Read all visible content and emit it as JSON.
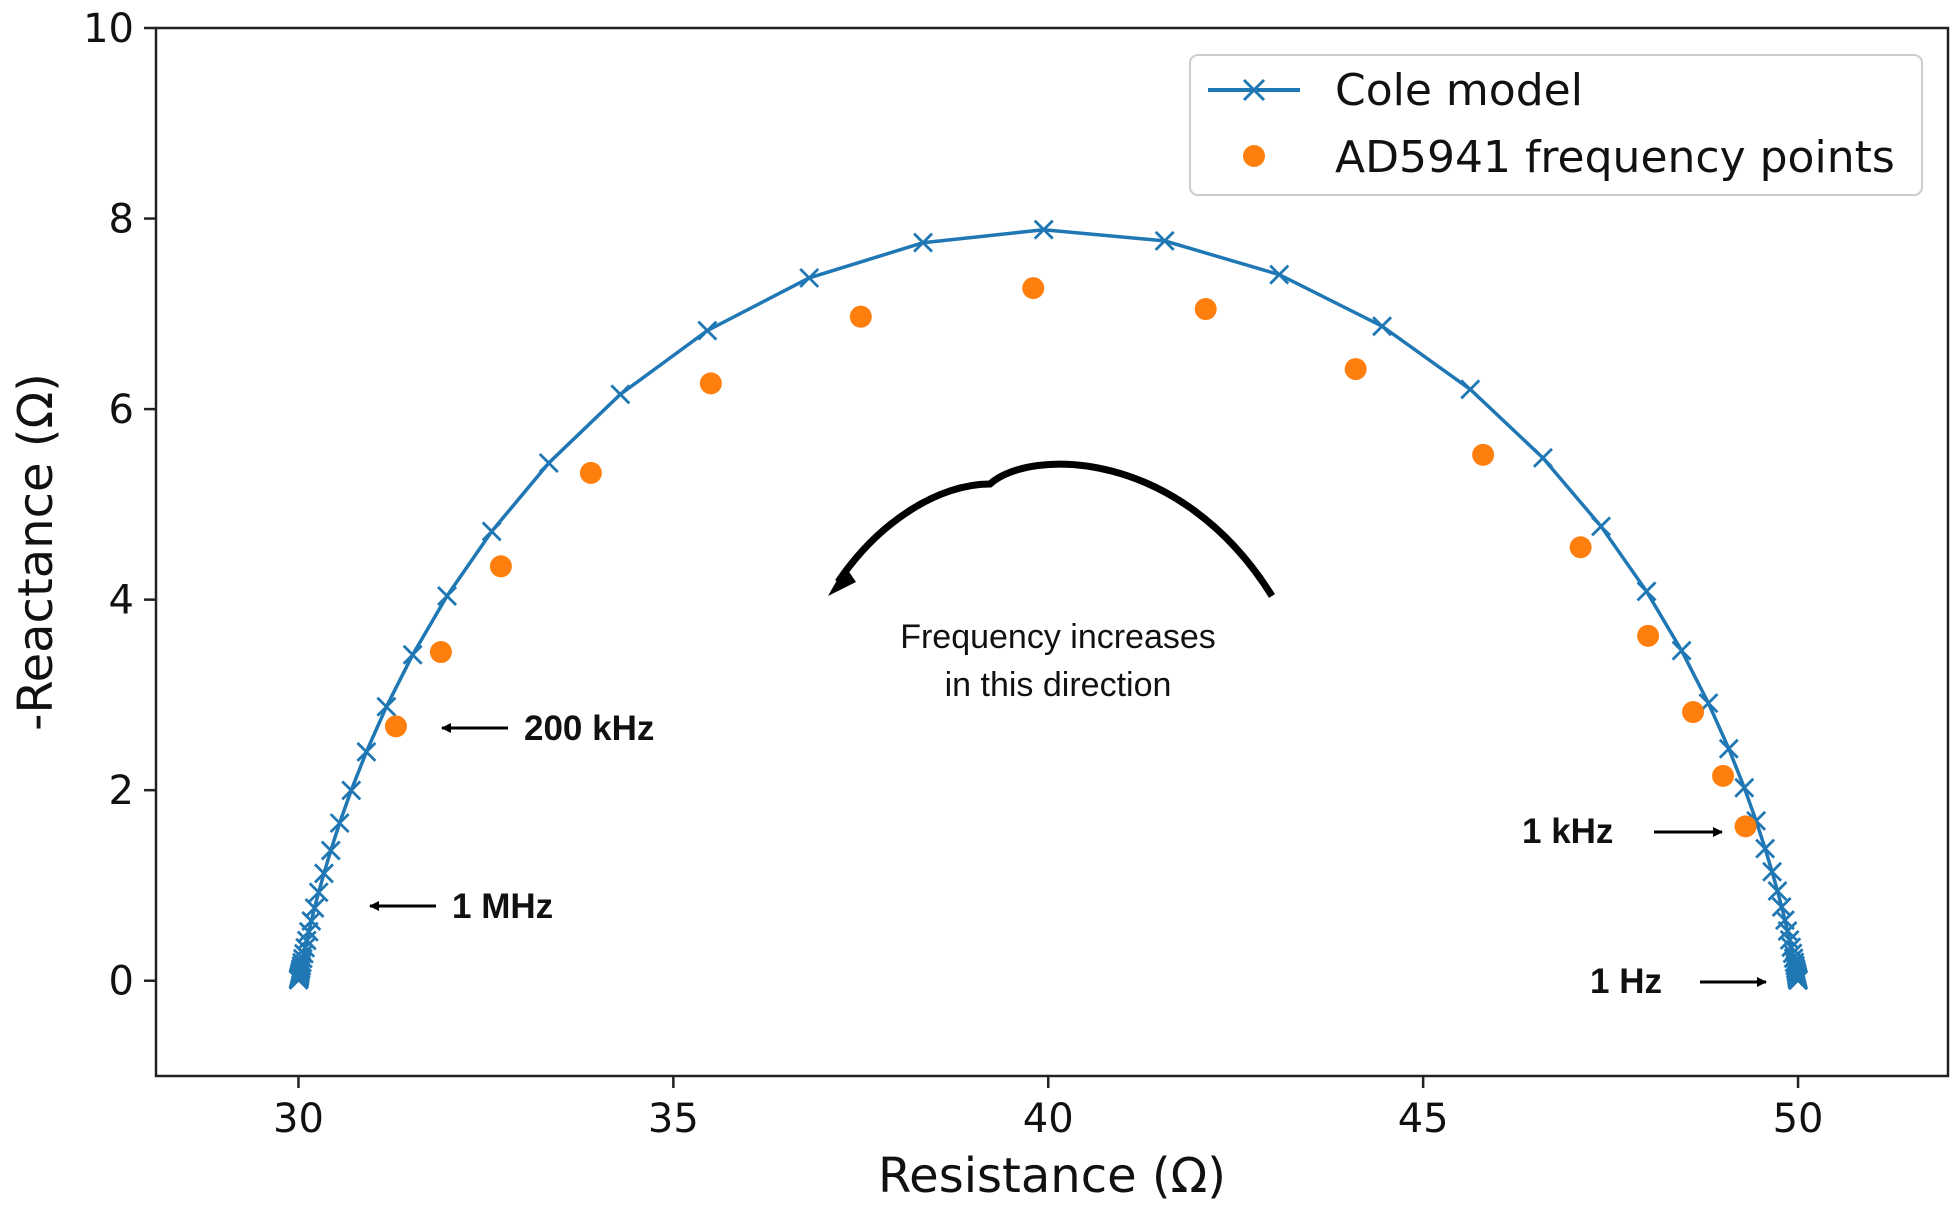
{
  "chart_data": {
    "type": "line",
    "title": "",
    "xlabel": "Resistance (Ω)",
    "ylabel": "-Reactance (Ω)",
    "xlim": [
      28.1,
      52.0
    ],
    "ylim": [
      -1.0,
      10.0
    ],
    "xticks": [
      30,
      35,
      40,
      45,
      50
    ],
    "yticks": [
      0,
      2,
      4,
      6,
      8,
      10
    ],
    "grid": false,
    "legend_position": "top-right",
    "colors": {
      "cole_model": "#1f77b4",
      "ad5941": "#ff7f0e",
      "annotation": "#000000"
    },
    "series": [
      {
        "name": "Cole model",
        "style": "line-with-x-markers",
        "color": "#1f77b4",
        "model": {
          "r_inf": 30.0,
          "r_0": 50.0,
          "alpha": 0.85
        },
        "points_count": 80
      },
      {
        "name": "AD5941 frequency points",
        "style": "markers",
        "color": "#ff7f0e",
        "points": [
          [
            49.3,
            1.62
          ],
          [
            49.0,
            2.15
          ],
          [
            48.6,
            2.82
          ],
          [
            48.0,
            3.62
          ],
          [
            47.1,
            4.55
          ],
          [
            45.8,
            5.52
          ],
          [
            44.1,
            6.42
          ],
          [
            42.1,
            7.05
          ],
          [
            39.8,
            7.27
          ],
          [
            37.5,
            6.97
          ],
          [
            35.5,
            6.27
          ],
          [
            33.9,
            5.33
          ],
          [
            32.7,
            4.35
          ],
          [
            31.9,
            3.45
          ],
          [
            31.3,
            2.67
          ]
        ]
      }
    ],
    "annotations": [
      {
        "text": "200 kHz",
        "arrow_direction": "left"
      },
      {
        "text": "1 MHz",
        "arrow_direction": "left"
      },
      {
        "text": "1 kHz",
        "arrow_direction": "right"
      },
      {
        "text": "1 Hz",
        "arrow_direction": "right"
      },
      {
        "text_lines": [
          "Frequency increases",
          "in this direction"
        ],
        "arrow": "curved-left"
      }
    ]
  }
}
